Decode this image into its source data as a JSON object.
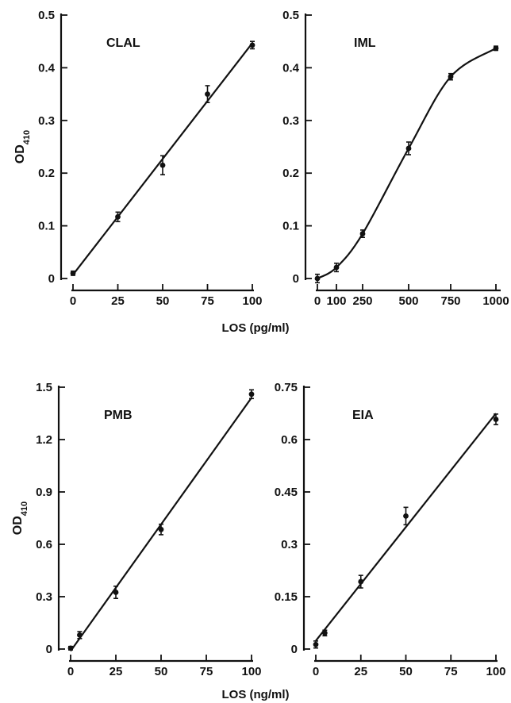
{
  "xlabels": {
    "top": "LOS (pg/ml)",
    "bottom": "LOS (ng/ml)"
  },
  "chart_data": [
    {
      "type": "line",
      "panel_label": "CLAL",
      "ylabel": "OD",
      "ylabel_sub": "410",
      "xlabel": "LOS (pg/ml)",
      "xlim": [
        0,
        100
      ],
      "ylim": [
        0,
        0.5
      ],
      "xticks": [
        0,
        25,
        50,
        75,
        100
      ],
      "yticks": [
        0,
        0.1,
        0.2,
        0.3,
        0.4,
        0.5
      ],
      "xticklabels": [
        "0",
        "25",
        "50",
        "75",
        "100"
      ],
      "yticklabels": [
        "0",
        "0.1",
        "0.2",
        "0.3",
        "0.4",
        "0.5"
      ],
      "fit": "linear",
      "series": [
        {
          "x": [
            0,
            25,
            50,
            75,
            100
          ],
          "y": [
            0.01,
            0.117,
            0.215,
            0.35,
            0.443
          ],
          "err": [
            0.004,
            0.009,
            0.018,
            0.016,
            0.007
          ]
        }
      ]
    },
    {
      "type": "line",
      "panel_label": "IML",
      "ylabel": "",
      "xlabel": "LOS (pg/ml)",
      "xlim": [
        0,
        1000
      ],
      "ylim": [
        0,
        0.5
      ],
      "xticks": [
        0,
        100,
        250,
        500,
        750,
        1000
      ],
      "yticks": [
        0,
        0.1,
        0.2,
        0.3,
        0.4,
        0.5
      ],
      "xticklabels": [
        "0",
        "100",
        "250",
        "500",
        "750",
        "1000"
      ],
      "yticklabels": [
        "0",
        "0.1",
        "0.2",
        "0.3",
        "0.4",
        "0.5"
      ],
      "x_scale": "nonlinear",
      "fit": "sigmoid",
      "series": [
        {
          "x": [
            0,
            100,
            250,
            500,
            750,
            1000
          ],
          "y": [
            0.0,
            0.021,
            0.085,
            0.247,
            0.383,
            0.437
          ],
          "err": [
            0.008,
            0.008,
            0.007,
            0.012,
            0.006,
            0.004
          ]
        }
      ]
    },
    {
      "type": "line",
      "panel_label": "PMB",
      "ylabel": "OD",
      "ylabel_sub": "410",
      "xlabel": "LOS (ng/ml)",
      "xlim": [
        0,
        100
      ],
      "ylim": [
        0,
        1.5
      ],
      "xticks": [
        0,
        25,
        50,
        75,
        100
      ],
      "yticks": [
        0,
        0.3,
        0.6,
        0.9,
        1.2,
        1.5
      ],
      "xticklabels": [
        "0",
        "25",
        "50",
        "75",
        "100"
      ],
      "yticklabels": [
        "0",
        "0.3",
        "0.6",
        "0.9",
        "1.2",
        "1.5"
      ],
      "fit": "linear",
      "series": [
        {
          "x": [
            0,
            5,
            25,
            50,
            100
          ],
          "y": [
            0.005,
            0.08,
            0.325,
            0.685,
            1.46
          ],
          "err": [
            0.01,
            0.02,
            0.035,
            0.03,
            0.025
          ]
        }
      ]
    },
    {
      "type": "line",
      "panel_label": "EIA",
      "ylabel": "",
      "xlabel": "LOS (ng/ml)",
      "xlim": [
        0,
        100
      ],
      "ylim": [
        0,
        0.75
      ],
      "xticks": [
        0,
        25,
        50,
        75,
        100
      ],
      "yticks": [
        0,
        0.15,
        0.3,
        0.45,
        0.6,
        0.75
      ],
      "xticklabels": [
        "0",
        "25",
        "50",
        "75",
        "100"
      ],
      "yticklabels": [
        "0",
        "0.15",
        "0.3",
        "0.45",
        "0.6",
        "0.75"
      ],
      "fit": "linear",
      "series": [
        {
          "x": [
            0,
            5,
            25,
            50,
            100
          ],
          "y": [
            0.013,
            0.046,
            0.193,
            0.381,
            0.658
          ],
          "err": [
            0.01,
            0.008,
            0.018,
            0.025,
            0.015
          ]
        }
      ]
    }
  ]
}
